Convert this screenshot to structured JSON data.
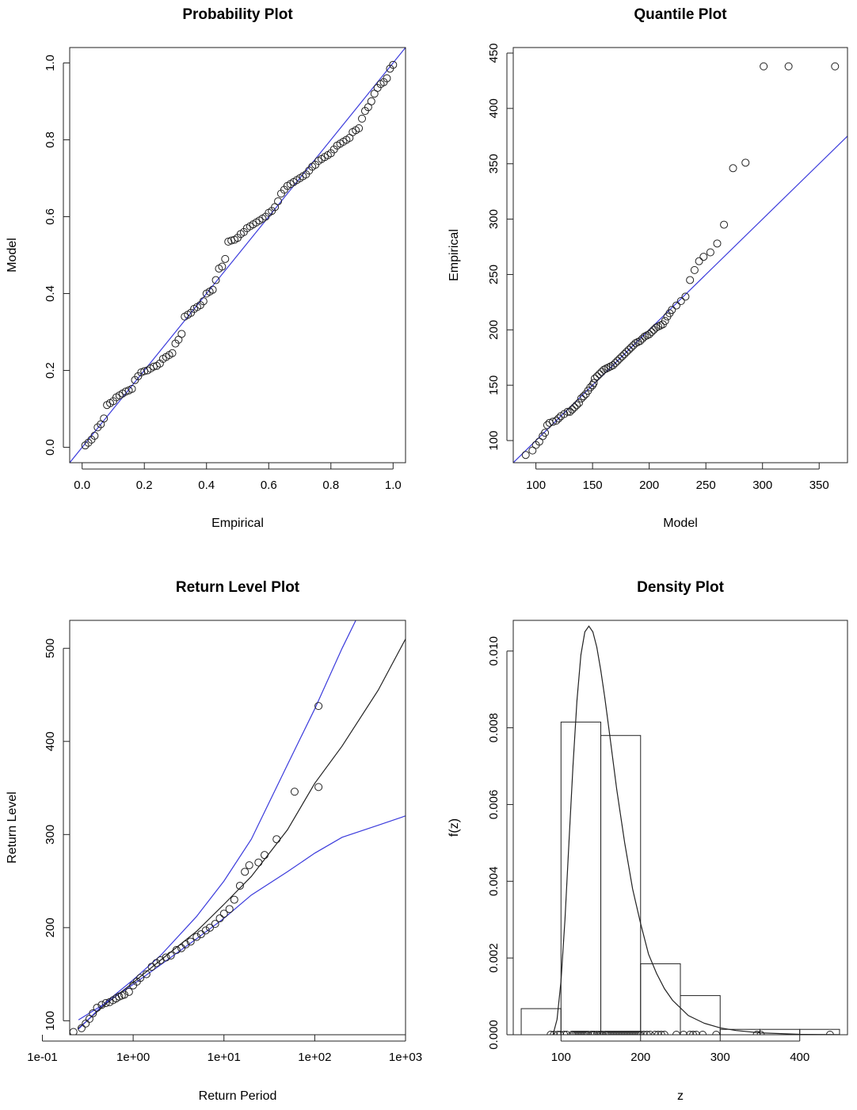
{
  "chart_data": [
    {
      "type": "scatter",
      "title": "Probability Plot",
      "xlabel": "Empirical",
      "ylabel": "Model",
      "xlim": [
        -0.04,
        1.04
      ],
      "ylim": [
        -0.04,
        1.04
      ],
      "xticks": [
        0.0,
        0.2,
        0.4,
        0.6,
        0.8,
        1.0
      ],
      "yticks": [
        0.0,
        0.2,
        0.4,
        0.6,
        0.8,
        1.0
      ],
      "tick_labels_x": [
        "0.0",
        "0.2",
        "0.4",
        "0.6",
        "0.8",
        "1.0"
      ],
      "tick_labels_y": [
        "0.0",
        "0.2",
        "0.4",
        "0.6",
        "0.8",
        "1.0"
      ],
      "reference_line": {
        "points": [
          [
            -0.04,
            -0.04
          ],
          [
            1.04,
            1.04
          ]
        ],
        "color": "#3b3bdc"
      },
      "series": [
        {
          "marker": "open-circle",
          "x": [
            0.01,
            0.02,
            0.03,
            0.04,
            0.05,
            0.06,
            0.07,
            0.08,
            0.09,
            0.1,
            0.11,
            0.12,
            0.13,
            0.14,
            0.15,
            0.16,
            0.17,
            0.18,
            0.19,
            0.2,
            0.21,
            0.22,
            0.23,
            0.24,
            0.25,
            0.26,
            0.27,
            0.28,
            0.29,
            0.3,
            0.31,
            0.32,
            0.33,
            0.34,
            0.35,
            0.36,
            0.37,
            0.38,
            0.39,
            0.4,
            0.41,
            0.42,
            0.43,
            0.44,
            0.45,
            0.46,
            0.47,
            0.48,
            0.49,
            0.5,
            0.51,
            0.52,
            0.53,
            0.54,
            0.55,
            0.56,
            0.57,
            0.58,
            0.59,
            0.6,
            0.61,
            0.62,
            0.63,
            0.64,
            0.65,
            0.66,
            0.67,
            0.68,
            0.69,
            0.7,
            0.71,
            0.72,
            0.73,
            0.74,
            0.75,
            0.76,
            0.77,
            0.78,
            0.79,
            0.8,
            0.81,
            0.82,
            0.83,
            0.84,
            0.85,
            0.86,
            0.87,
            0.88,
            0.89,
            0.9,
            0.91,
            0.92,
            0.93,
            0.94,
            0.95,
            0.96,
            0.97,
            0.98,
            0.99,
            1.0
          ],
          "y": [
            0.005,
            0.012,
            0.02,
            0.03,
            0.052,
            0.06,
            0.075,
            0.11,
            0.115,
            0.12,
            0.13,
            0.135,
            0.14,
            0.145,
            0.148,
            0.152,
            0.175,
            0.185,
            0.195,
            0.198,
            0.2,
            0.205,
            0.21,
            0.212,
            0.218,
            0.23,
            0.235,
            0.24,
            0.245,
            0.27,
            0.28,
            0.295,
            0.34,
            0.345,
            0.35,
            0.36,
            0.365,
            0.37,
            0.38,
            0.4,
            0.405,
            0.41,
            0.435,
            0.465,
            0.47,
            0.49,
            0.535,
            0.538,
            0.54,
            0.545,
            0.555,
            0.56,
            0.57,
            0.575,
            0.58,
            0.585,
            0.59,
            0.595,
            0.6,
            0.61,
            0.615,
            0.625,
            0.64,
            0.66,
            0.67,
            0.68,
            0.685,
            0.69,
            0.695,
            0.7,
            0.705,
            0.71,
            0.72,
            0.73,
            0.735,
            0.745,
            0.75,
            0.755,
            0.76,
            0.765,
            0.775,
            0.785,
            0.79,
            0.795,
            0.8,
            0.805,
            0.82,
            0.825,
            0.83,
            0.855,
            0.875,
            0.885,
            0.9,
            0.92,
            0.935,
            0.945,
            0.95,
            0.96,
            0.985,
            0.995
          ]
        }
      ]
    },
    {
      "type": "scatter",
      "title": "Quantile Plot",
      "xlabel": "Model",
      "ylabel": "Empirical",
      "xlim": [
        80,
        375
      ],
      "ylim": [
        80,
        455
      ],
      "xticks": [
        100,
        150,
        200,
        250,
        300,
        350
      ],
      "yticks": [
        100,
        150,
        200,
        250,
        300,
        350,
        400,
        450
      ],
      "tick_labels_x": [
        "100",
        "150",
        "200",
        "250",
        "300",
        "350"
      ],
      "tick_labels_y": [
        "100",
        "150",
        "200",
        "250",
        "300",
        "350",
        "400",
        "450"
      ],
      "reference_line": {
        "points": [
          [
            80,
            80
          ],
          [
            375,
            375
          ]
        ],
        "color": "#3b3bdc"
      },
      "series": [
        {
          "marker": "open-circle",
          "x": [
            91,
            97,
            100,
            103,
            106,
            108,
            110,
            112,
            115,
            118,
            120,
            122,
            125,
            128,
            130,
            132,
            134,
            136,
            138,
            140,
            142,
            144,
            146,
            148,
            150,
            151,
            152,
            154,
            156,
            158,
            160,
            162,
            164,
            166,
            168,
            170,
            172,
            174,
            176,
            178,
            180,
            182,
            184,
            186,
            188,
            190,
            192,
            194,
            196,
            198,
            200,
            202,
            204,
            206,
            208,
            210,
            212,
            214,
            216,
            218,
            220,
            224,
            228,
            232,
            236,
            240,
            244,
            248,
            254,
            260,
            266,
            274,
            285,
            301,
            323,
            364
          ],
          "y": [
            87,
            91,
            96,
            99,
            104,
            107,
            114,
            116,
            117,
            118,
            120,
            122,
            124,
            126,
            126,
            128,
            130,
            132,
            134,
            138,
            140,
            142,
            145,
            148,
            150,
            152,
            156,
            158,
            160,
            162,
            164,
            165,
            166,
            167,
            168,
            170,
            172,
            174,
            176,
            178,
            180,
            182,
            184,
            186,
            188,
            189,
            190,
            192,
            194,
            195,
            196,
            198,
            200,
            202,
            203,
            204,
            205,
            208,
            212,
            215,
            218,
            222,
            226,
            230,
            245,
            254,
            262,
            266,
            270,
            278,
            295,
            346,
            351,
            438,
            438,
            438
          ]
        }
      ]
    },
    {
      "type": "line",
      "title": "Return Level Plot",
      "xlabel": "Return Period",
      "ylabel": "Return Level",
      "xscale": "log",
      "xlim": [
        0.2,
        1000
      ],
      "ylim": [
        85,
        530
      ],
      "xticks": [
        0.1,
        1,
        10,
        100,
        1000
      ],
      "yticks": [
        100,
        200,
        300,
        400,
        500
      ],
      "tick_labels_x": [
        "1e-01",
        "1e+00",
        "1e+01",
        "1e+02",
        "1e+03"
      ],
      "tick_labels_y": [
        "100",
        "200",
        "300",
        "400",
        "500"
      ],
      "series": [
        {
          "line": "fit",
          "color": "#222222",
          "x": [
            0.25,
            0.5,
            1,
            2,
            5,
            10,
            20,
            50,
            100,
            200,
            500,
            1000
          ],
          "y": [
            92,
            118,
            141,
            165,
            196,
            225,
            255,
            305,
            355,
            395,
            455,
            510
          ]
        },
        {
          "line": "upper",
          "color": "#3b3bdc",
          "x": [
            0.25,
            0.5,
            1,
            2,
            5,
            10,
            20,
            50,
            100,
            200,
            300
          ],
          "y": [
            91,
            120,
            144,
            170,
            212,
            250,
            295,
            375,
            435,
            500,
            535
          ]
        },
        {
          "line": "lower",
          "color": "#3b3bdc",
          "x": [
            0.25,
            0.5,
            1,
            2,
            5,
            10,
            20,
            50,
            100,
            200,
            500,
            1000
          ],
          "y": [
            101,
            119,
            139,
            160,
            188,
            210,
            235,
            260,
            280,
            297,
            310,
            320
          ]
        },
        {
          "marker": "open-circle",
          "x": [
            0.22,
            0.27,
            0.3,
            0.33,
            0.36,
            0.4,
            0.45,
            0.5,
            0.55,
            0.6,
            0.65,
            0.7,
            0.75,
            0.8,
            0.9,
            1.0,
            1.1,
            1.2,
            1.4,
            1.6,
            1.8,
            2.0,
            2.3,
            2.6,
            3.0,
            3.4,
            3.8,
            4.3,
            5.0,
            5.6,
            6.3,
            7.0,
            8.0,
            9.0,
            10,
            11.5,
            13,
            15,
            17,
            19,
            24,
            28,
            38,
            60,
            110
          ],
          "y": [
            88,
            92,
            97,
            102,
            108,
            114,
            117,
            119,
            120,
            122,
            124,
            126,
            127,
            128,
            131,
            138,
            142,
            146,
            150,
            158,
            162,
            165,
            168,
            170,
            176,
            178,
            182,
            185,
            190,
            193,
            197,
            200,
            204,
            210,
            215,
            220,
            230,
            245,
            260,
            267,
            270,
            278,
            295,
            346,
            351
          ]
        },
        {
          "marker": "open-circle",
          "x": [
            110
          ],
          "y": [
            438
          ]
        }
      ]
    },
    {
      "type": "bar",
      "title": "Density Plot",
      "xlabel": "z",
      "ylabel": "f(z)",
      "xlim": [
        40,
        460
      ],
      "ylim": [
        0,
        0.0108
      ],
      "xticks": [
        100,
        200,
        300,
        400
      ],
      "yticks": [
        0.0,
        0.002,
        0.004,
        0.006,
        0.008,
        0.01
      ],
      "tick_labels_x": [
        "100",
        "200",
        "300",
        "400"
      ],
      "tick_labels_y": [
        "0.000",
        "0.002",
        "0.004",
        "0.006",
        "0.008",
        "0.010"
      ],
      "histogram": {
        "bin_edges": [
          50,
          100,
          150,
          200,
          250,
          300,
          350,
          400,
          450
        ],
        "density": [
          0.00068,
          0.00815,
          0.0078,
          0.00185,
          0.00102,
          0.00014,
          0.00014,
          0.00014
        ]
      },
      "density_curve": {
        "x": [
          90,
          95,
          100,
          105,
          110,
          115,
          120,
          125,
          130,
          135,
          140,
          145,
          150,
          155,
          160,
          170,
          180,
          190,
          200,
          210,
          220,
          230,
          240,
          250,
          260,
          280,
          300,
          320,
          350,
          400,
          450
        ],
        "y": [
          0.0,
          0.0004,
          0.0014,
          0.003,
          0.005,
          0.007,
          0.0087,
          0.0099,
          0.0105,
          0.01065,
          0.0105,
          0.0101,
          0.0095,
          0.0088,
          0.008,
          0.0064,
          0.005,
          0.0038,
          0.0029,
          0.0021,
          0.0016,
          0.0012,
          0.0009,
          0.0007,
          0.0005,
          0.0003,
          0.00018,
          0.00011,
          5e-05,
          1e-05,
          3e-06
        ]
      },
      "rug": [
        87,
        91,
        96,
        99,
        104,
        107,
        114,
        116,
        118,
        120,
        122,
        124,
        126,
        128,
        130,
        132,
        134,
        138,
        140,
        142,
        145,
        148,
        150,
        152,
        156,
        158,
        160,
        162,
        164,
        166,
        168,
        170,
        172,
        174,
        176,
        178,
        180,
        182,
        184,
        186,
        188,
        190,
        192,
        194,
        196,
        198,
        200,
        204,
        208,
        212,
        218,
        222,
        226,
        230,
        245,
        254,
        262,
        266,
        270,
        278,
        295,
        346,
        351,
        438
      ]
    }
  ]
}
